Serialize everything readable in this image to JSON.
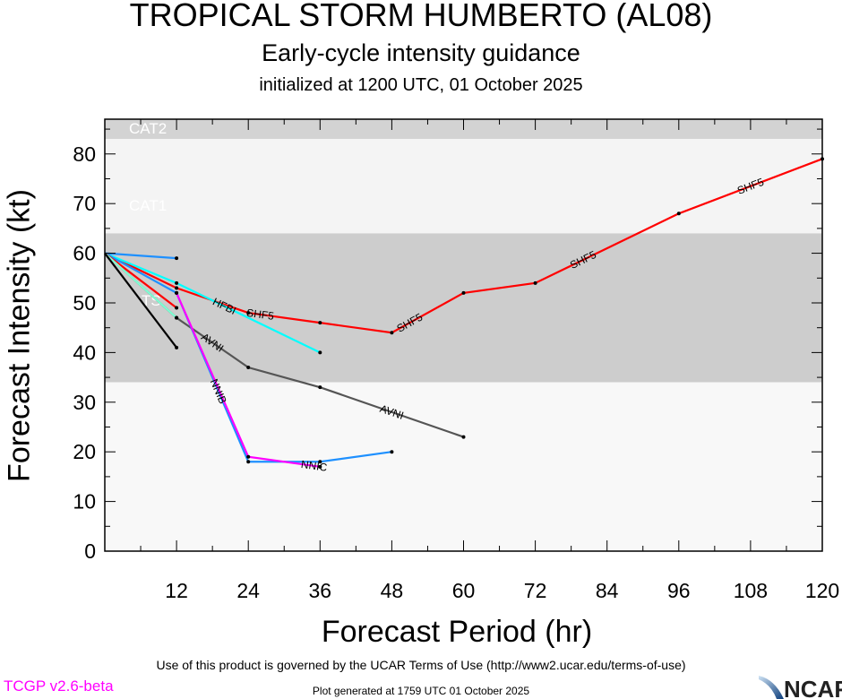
{
  "chart_data": {
    "type": "line",
    "title": "TROPICAL STORM HUMBERTO (AL08)",
    "subtitle": "Early-cycle intensity guidance",
    "subtitle2": "initialized at 1200 UTC, 01 October 2025",
    "xlabel": "Forecast Period (hr)",
    "ylabel": "Forecast Intensity (kt)",
    "xlim": [
      0,
      120
    ],
    "ylim": [
      0,
      87
    ],
    "xticks": [
      12,
      24,
      36,
      48,
      60,
      72,
      84,
      96,
      108,
      120
    ],
    "yticks": [
      0,
      10,
      20,
      30,
      40,
      50,
      60,
      70,
      80
    ],
    "bands": [
      {
        "label": "CAT2",
        "from": 83,
        "to": 96,
        "color": "#d3d3d3"
      },
      {
        "label": "CAT1",
        "from": 64,
        "to": 83,
        "color": "#f4f4f4"
      },
      {
        "label": "TS",
        "from": 34,
        "to": 64,
        "color": "#cdcdcd"
      },
      {
        "label": "",
        "from": 0,
        "to": 34,
        "color": "#f8f8f8"
      }
    ],
    "series": [
      {
        "name": "SHF5",
        "color": "#ff0000",
        "x": [
          0,
          12,
          24,
          36,
          48,
          60,
          72,
          96,
          120
        ],
        "y": [
          60,
          53,
          48,
          46,
          44,
          52,
          54,
          68,
          79
        ],
        "labels_at": [
          26,
          51,
          80,
          108
        ]
      },
      {
        "name": "HFBI",
        "color": "#00ffff",
        "x": [
          0,
          12,
          36
        ],
        "y": [
          60,
          54,
          40
        ],
        "labels_at": [
          24
        ]
      },
      {
        "name": "AVNI",
        "color": "#555555",
        "x": [
          0,
          12,
          24,
          36,
          60
        ],
        "y": [
          60,
          47,
          37,
          33,
          23
        ],
        "labels_at": [
          18,
          48
        ]
      },
      {
        "name": "NNIB",
        "color": "#1e90ff",
        "x": [
          0,
          12,
          24,
          36,
          48
        ],
        "y": [
          60,
          52,
          18,
          18,
          20
        ],
        "labels_at": [
          17
        ]
      },
      {
        "name": "NNIC",
        "color": "#ff00ff",
        "x": [
          12,
          24,
          36
        ],
        "y": [
          52,
          19,
          17
        ],
        "labels_at": [
          35
        ]
      },
      {
        "name": "",
        "color": "#1e90ff",
        "x": [
          0,
          12
        ],
        "y": [
          60,
          59
        ],
        "labels_at": []
      },
      {
        "name": "",
        "color": "#ff0000",
        "x": [
          0,
          12
        ],
        "y": [
          60,
          49
        ],
        "labels_at": []
      },
      {
        "name": "",
        "color": "#7fffd4",
        "x": [
          0,
          12
        ],
        "y": [
          60,
          47
        ],
        "labels_at": []
      },
      {
        "name": "",
        "color": "#000000",
        "x": [
          0,
          12
        ],
        "y": [
          60,
          41
        ],
        "labels_at": []
      }
    ]
  },
  "footer": {
    "terms": "Use of this product is governed by the UCAR Terms of Use (http://www2.ucar.edu/terms-of-use)",
    "generated": "Plot generated at 1759 UTC   01 October 2025",
    "version": "TCGP v2.6-beta",
    "logo_text": "NCAR"
  }
}
